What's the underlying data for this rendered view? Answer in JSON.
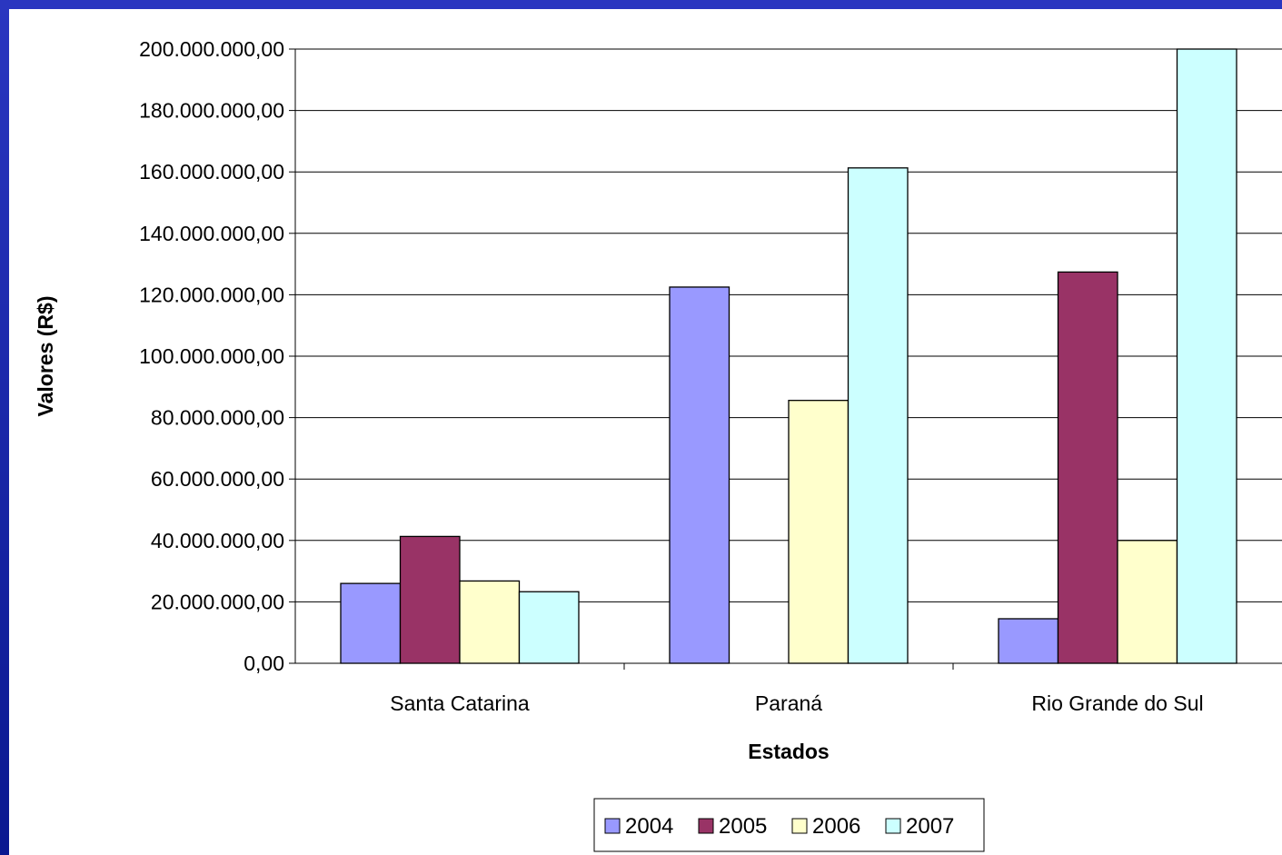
{
  "chart_data": {
    "type": "bar",
    "title": "",
    "xlabel": "Estados",
    "ylabel": "Valores (R$)",
    "categories": [
      "Santa Catarina",
      "Paraná",
      "Rio Grande do Sul"
    ],
    "ylim": [
      0,
      200000000
    ],
    "yticks": [
      0,
      20000000,
      40000000,
      60000000,
      80000000,
      100000000,
      120000000,
      140000000,
      160000000,
      180000000,
      200000000
    ],
    "ytick_labels": [
      "0,00",
      "20.000.000,00",
      "40.000.000,00",
      "60.000.000,00",
      "80.000.000,00",
      "100.000.000,00",
      "120.000.000,00",
      "140.000.000,00",
      "160.000.000,00",
      "180.000.000,00",
      "200.000.000,00"
    ],
    "series": [
      {
        "name": "2004",
        "color": "#9999ff",
        "values": [
          26000000,
          122500000,
          14500000
        ]
      },
      {
        "name": "2005",
        "color": "#993366",
        "values": [
          41300000,
          0,
          127400000
        ]
      },
      {
        "name": "2006",
        "color": "#ffffcc",
        "values": [
          26800000,
          85600000,
          40000000
        ]
      },
      {
        "name": "2007",
        "color": "#ccffff",
        "values": [
          23300000,
          161300000,
          200000000
        ]
      }
    ],
    "grid": true,
    "legend_position": "bottom"
  }
}
